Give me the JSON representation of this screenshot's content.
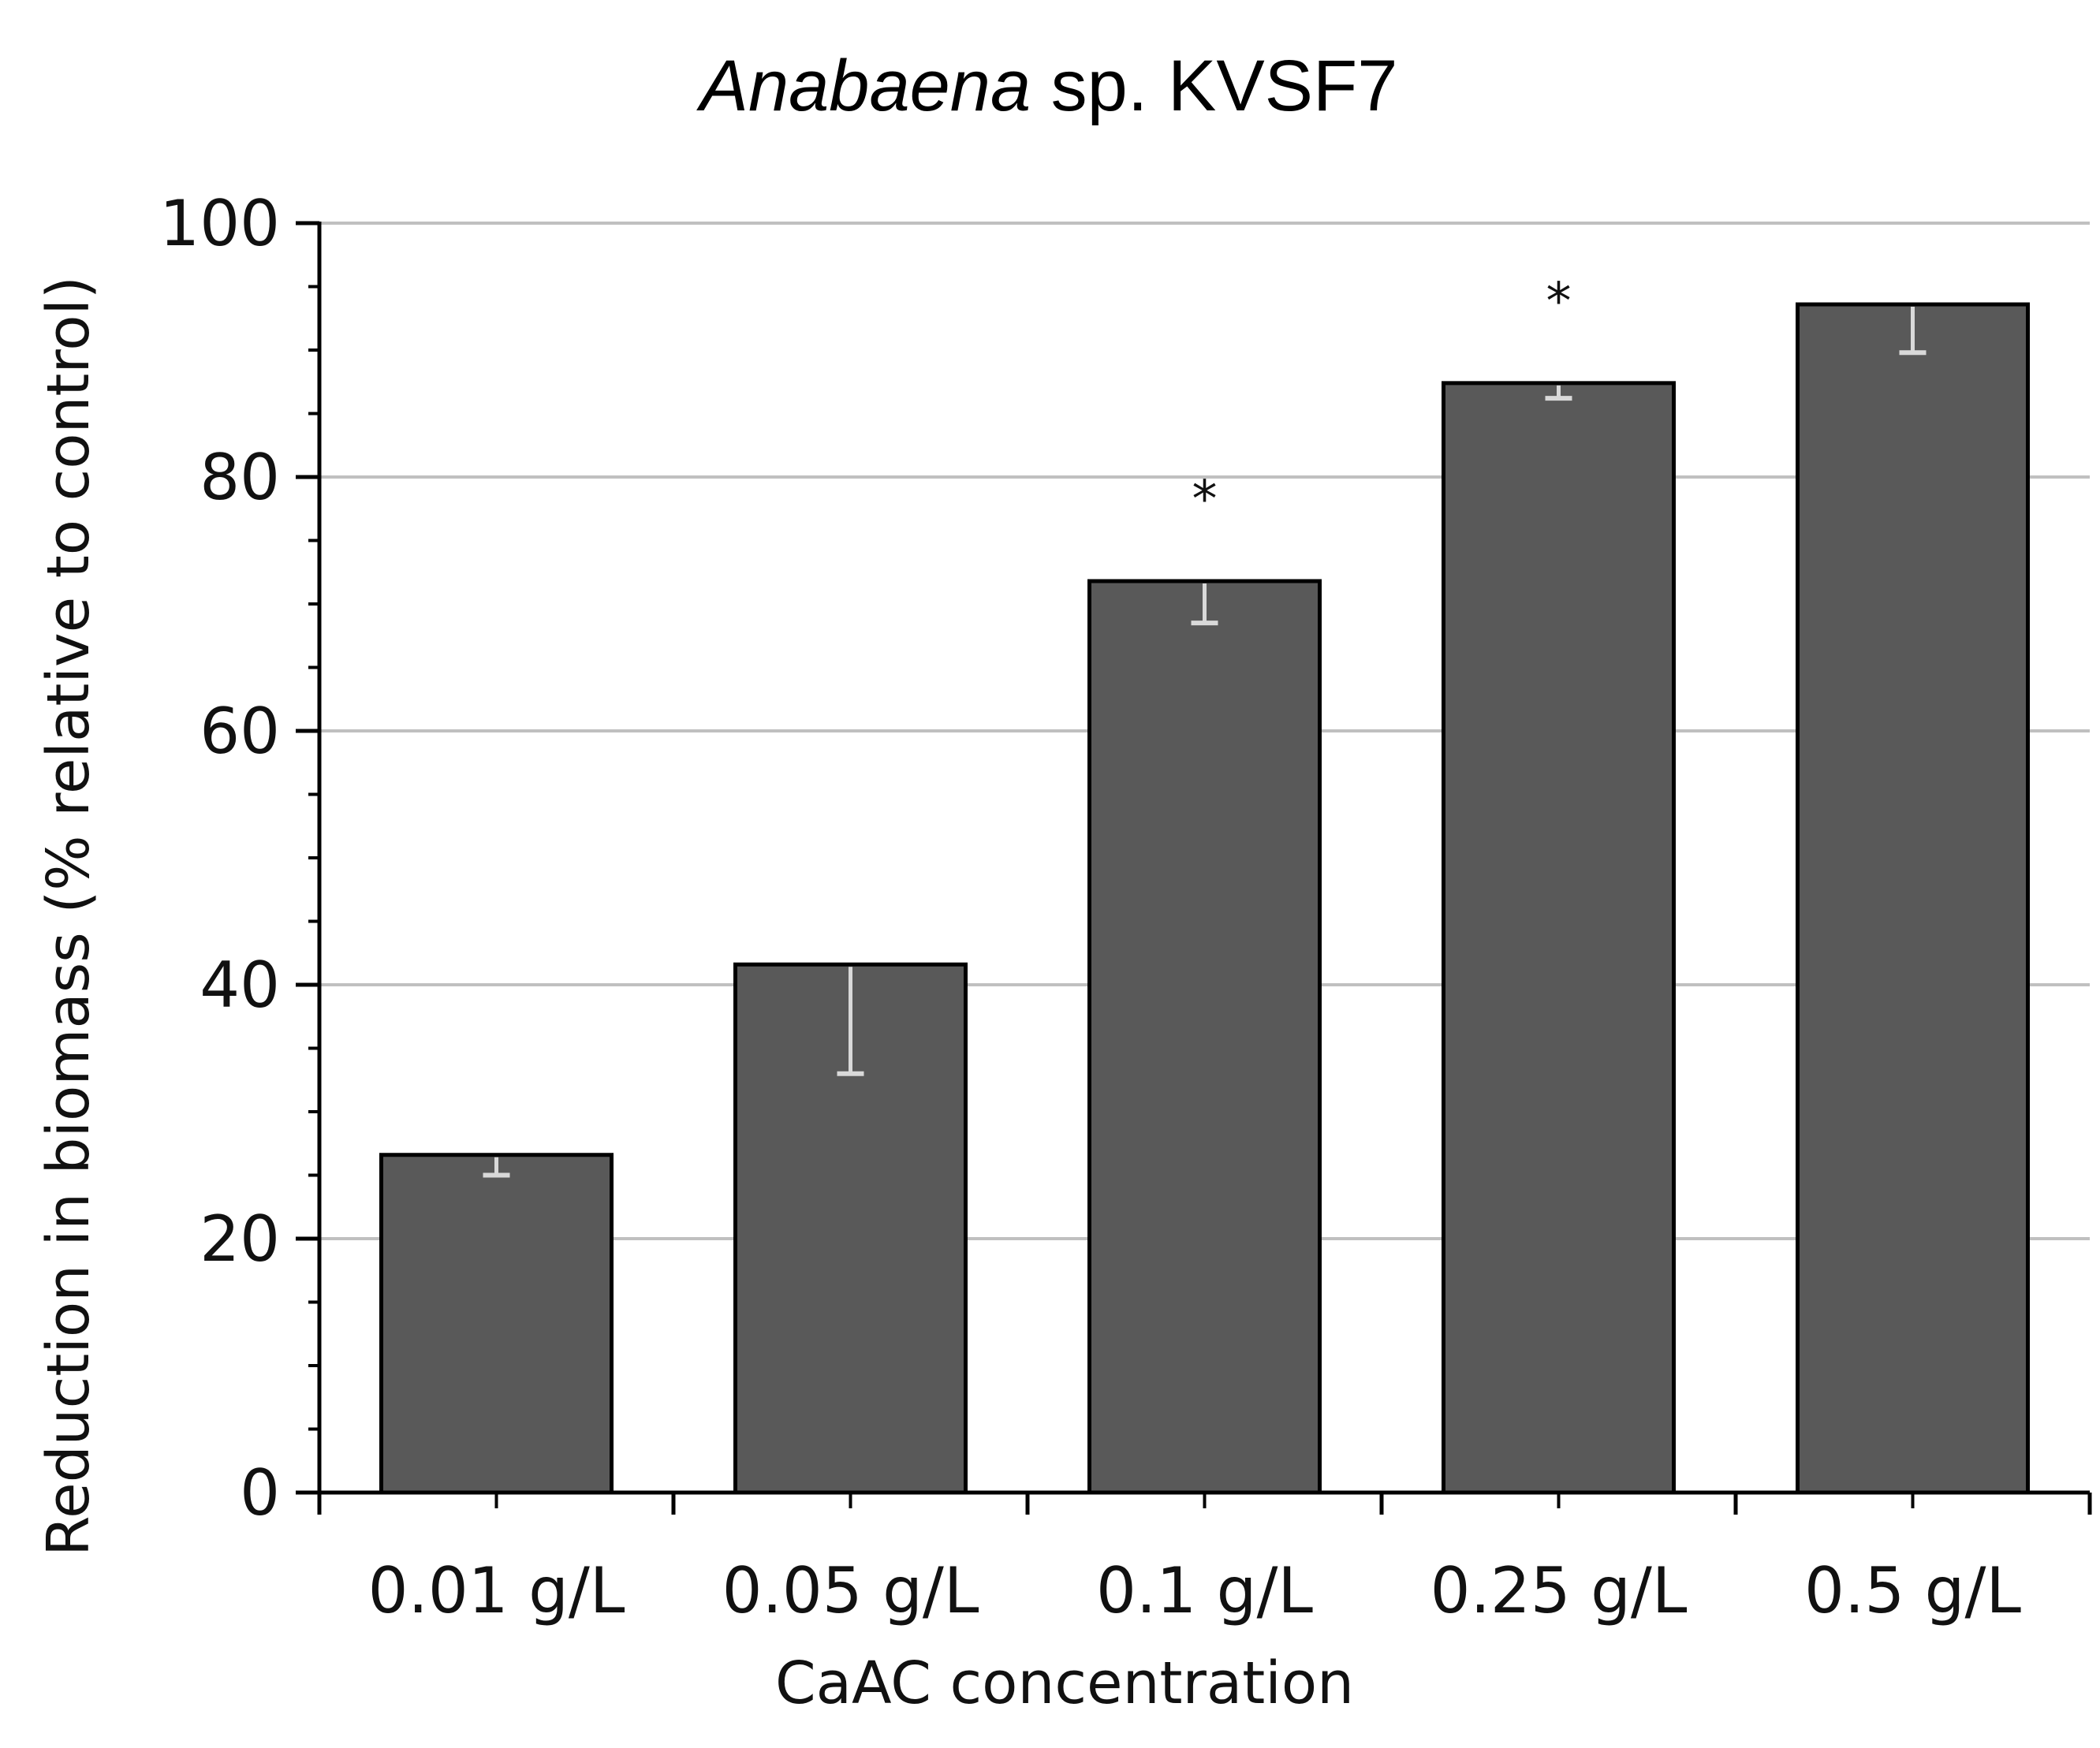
{
  "chart_data": {
    "type": "bar",
    "title_italic": "Anabaena",
    "title_rest": " sp. KVSF7",
    "xlabel": "CaAC concentration",
    "ylabel": "Reduction in biomass (% relative to control)",
    "categories": [
      "0.01 g/L",
      "0.05 g/L",
      "0.1 g/L",
      "0.25 g/L",
      "0.5 g/L"
    ],
    "values": [
      26.6,
      41.6,
      71.8,
      87.4,
      93.6
    ],
    "error_low": [
      25.0,
      33.0,
      68.5,
      86.2,
      89.8
    ],
    "significance": [
      "",
      "",
      "*",
      "*",
      ""
    ],
    "ylim": [
      0,
      100
    ],
    "yticks": [
      0,
      20,
      40,
      60,
      80,
      100
    ],
    "ytick_labels": [
      "0",
      "20",
      "40",
      "60",
      "80",
      "100"
    ],
    "grid": true,
    "bar_color": "#595959",
    "bar_edge_color": "#000000",
    "grid_color": "#c0c0c0",
    "error_bar_color": "#d9d9d9"
  }
}
